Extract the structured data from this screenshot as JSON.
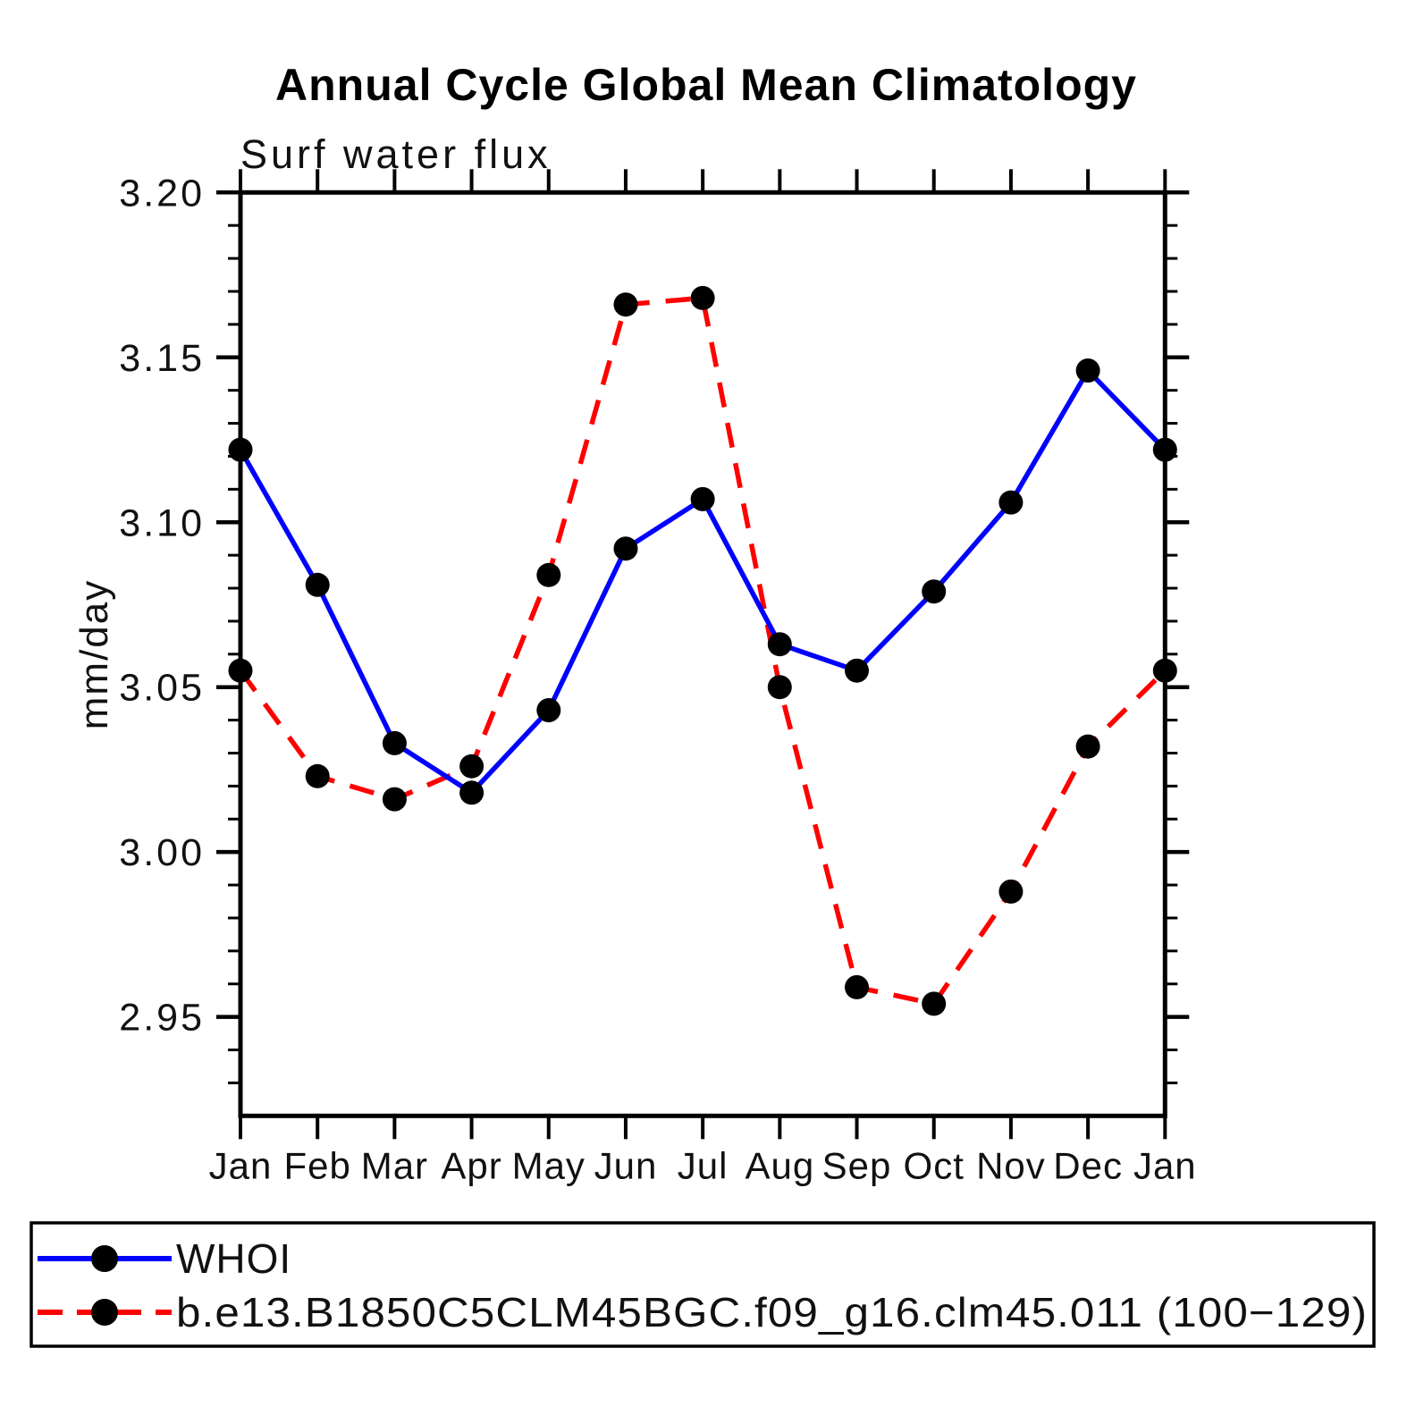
{
  "chart": {
    "title": "Annual Cycle Global Mean Climatology",
    "subtitle": "Surf water flux",
    "ylabel": "mm/day"
  },
  "chart_data": {
    "type": "line",
    "title": "Annual Cycle Global Mean Climatology",
    "subtitle": "Surf water flux",
    "xlabel": "",
    "ylabel": "mm/day",
    "categories": [
      "Jan",
      "Feb",
      "Mar",
      "Apr",
      "May",
      "Jun",
      "Jul",
      "Aug",
      "Sep",
      "Oct",
      "Nov",
      "Dec",
      "Jan"
    ],
    "series": [
      {
        "name": "WHOI",
        "color": "#0000ff",
        "line_style": "solid",
        "marker": "filled-circle",
        "marker_color": "#000000",
        "values": [
          3.122,
          3.081,
          3.033,
          3.018,
          3.043,
          3.092,
          3.107,
          3.063,
          3.055,
          3.079,
          3.106,
          3.146,
          3.122
        ]
      },
      {
        "name": "b.e13.B1850C5CLM45BGC.f09_g16.clm45.011 (100−129)",
        "color": "#ff0000",
        "line_style": "dashed",
        "marker": "filled-circle",
        "marker_color": "#000000",
        "values": [
          3.055,
          3.023,
          3.016,
          3.026,
          3.084,
          3.166,
          3.168,
          3.05,
          2.959,
          2.954,
          2.988,
          3.032,
          3.055
        ]
      }
    ],
    "ylim": [
      2.92,
      3.2
    ],
    "ytick_major_labels": [
      "3.20",
      "3.15",
      "3.10",
      "3.05",
      "3.00",
      "2.95"
    ],
    "ytick_major_values": [
      3.2,
      3.15,
      3.1,
      3.05,
      3.0,
      2.95
    ],
    "ytick_minor_step": 0.01,
    "grid": false,
    "legend_position": "bottom"
  },
  "axis_colors": {
    "axis": "#000000",
    "tick": "#000000"
  }
}
